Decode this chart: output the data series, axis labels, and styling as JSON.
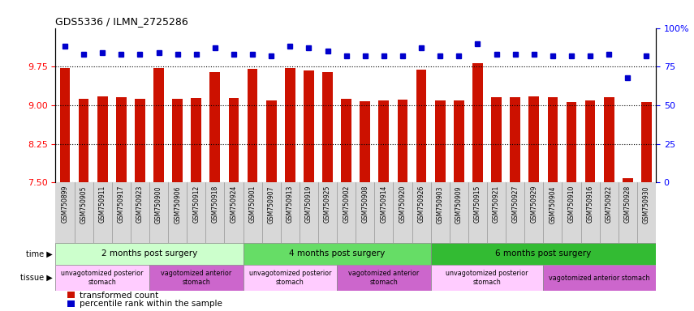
{
  "title": "GDS5336 / ILMN_2725286",
  "samples": [
    "GSM750899",
    "GSM750905",
    "GSM750911",
    "GSM750917",
    "GSM750923",
    "GSM750900",
    "GSM750906",
    "GSM750912",
    "GSM750918",
    "GSM750924",
    "GSM750901",
    "GSM750907",
    "GSM750913",
    "GSM750919",
    "GSM750925",
    "GSM750902",
    "GSM750908",
    "GSM750914",
    "GSM750920",
    "GSM750926",
    "GSM750903",
    "GSM750909",
    "GSM750915",
    "GSM750921",
    "GSM750927",
    "GSM750929",
    "GSM750904",
    "GSM750910",
    "GSM750916",
    "GSM750922",
    "GSM750928",
    "GSM750930"
  ],
  "bar_values": [
    9.72,
    9.12,
    9.17,
    9.15,
    9.12,
    9.73,
    9.13,
    9.14,
    9.65,
    9.14,
    9.7,
    9.09,
    9.72,
    9.68,
    9.65,
    9.12,
    9.08,
    9.09,
    9.11,
    9.69,
    9.1,
    9.09,
    9.82,
    9.16,
    9.16,
    9.17,
    9.15,
    9.06,
    9.1,
    9.16,
    7.58,
    9.07
  ],
  "percentile_values": [
    88,
    83,
    84,
    83,
    83,
    84,
    83,
    83,
    87,
    83,
    83,
    82,
    88,
    87,
    85,
    82,
    82,
    82,
    82,
    87,
    82,
    82,
    90,
    83,
    83,
    83,
    82,
    82,
    82,
    83,
    68,
    82
  ],
  "ylim_left": [
    7.5,
    10.5
  ],
  "ylim_right": [
    0,
    100
  ],
  "yticks_left": [
    7.5,
    8.25,
    9.0,
    9.75
  ],
  "yticks_right": [
    0,
    25,
    50,
    75,
    100
  ],
  "bar_color": "#cc1100",
  "dot_color": "#0000cc",
  "background_color": "#ffffff",
  "time_groups": [
    {
      "label": "2 months post surgery",
      "start": 0,
      "end": 9,
      "color": "#ccffcc"
    },
    {
      "label": "4 months post surgery",
      "start": 10,
      "end": 19,
      "color": "#66dd66"
    },
    {
      "label": "6 months post surgery",
      "start": 20,
      "end": 31,
      "color": "#33bb33"
    }
  ],
  "tissue_groups": [
    {
      "label": "unvagotomized posterior\nstomach",
      "start": 0,
      "end": 4,
      "color": "#ffccff"
    },
    {
      "label": "vagotomized anterior\nstomach",
      "start": 5,
      "end": 9,
      "color": "#cc66cc"
    },
    {
      "label": "unvagotomized posterior\nstomach",
      "start": 10,
      "end": 14,
      "color": "#ffccff"
    },
    {
      "label": "vagotomized anterior\nstomach",
      "start": 15,
      "end": 19,
      "color": "#cc66cc"
    },
    {
      "label": "unvagotomized posterior\nstomach",
      "start": 20,
      "end": 25,
      "color": "#ffccff"
    },
    {
      "label": "vagotomized anterior stomach",
      "start": 26,
      "end": 31,
      "color": "#cc66cc"
    }
  ],
  "time_label": "time",
  "tissue_label": "tissue",
  "legend_bar_label": "transformed count",
  "legend_dot_label": "percentile rank within the sample",
  "xtick_bg": "#d8d8d8"
}
